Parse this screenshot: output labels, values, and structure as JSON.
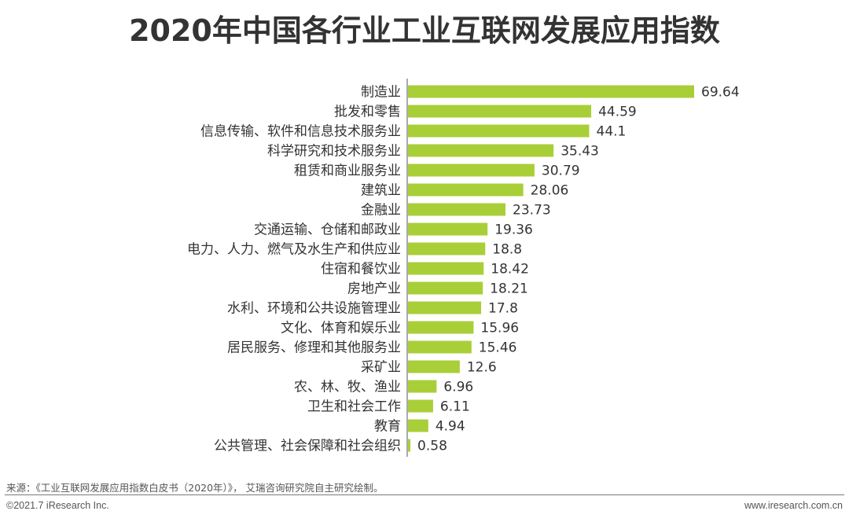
{
  "page": {
    "title": "2020年中国各行业工业互联网发展应用指数",
    "source": "来源：《工业互联网发展应用指数白皮书（2020年）》， 艾瑞咨询研究院自主研究绘制。",
    "copyright": "©2021.7 iResearch Inc.",
    "website": "www.iresearch.com.cn"
  },
  "colors": {
    "bar": "#a8cf38",
    "axis": "#555555",
    "text": "#333333"
  },
  "chart_data": {
    "type": "bar",
    "orientation": "horizontal",
    "title": "2020年中国各行业工业互联网发展应用指数",
    "categories": [
      "制造业",
      "批发和零售",
      "信息传输、软件和信息技术服务业",
      "科学研究和技术服务业",
      "租赁和商业服务业",
      "建筑业",
      "金融业",
      "交通运输、仓储和邮政业",
      "电力、人力、燃气及水生产和供应业",
      "住宿和餐饮业",
      "房地产业",
      "水利、环境和公共设施管理业",
      "文化、体育和娱乐业",
      "居民服务、修理和其他服务业",
      "采矿业",
      "农、林、牧、渔业",
      "卫生和社会工作",
      "教育",
      "公共管理、社会保障和社会组织"
    ],
    "values": [
      69.64,
      44.59,
      44.1,
      35.43,
      30.79,
      28.06,
      23.73,
      19.36,
      18.8,
      18.42,
      18.21,
      17.8,
      15.96,
      15.46,
      12.6,
      6.96,
      6.11,
      4.94,
      0.58
    ],
    "value_labels": [
      "69.64",
      "44.59",
      "44.1",
      "35.43",
      "30.79",
      "28.06",
      "23.73",
      "19.36",
      "18.8",
      "18.42",
      "18.21",
      "17.8",
      "15.96",
      "15.46",
      "12.6",
      "6.96",
      "6.11",
      "4.94",
      "0.58"
    ],
    "xlim": [
      0,
      70
    ],
    "grid": false,
    "legend": "none",
    "data_labels": true
  }
}
